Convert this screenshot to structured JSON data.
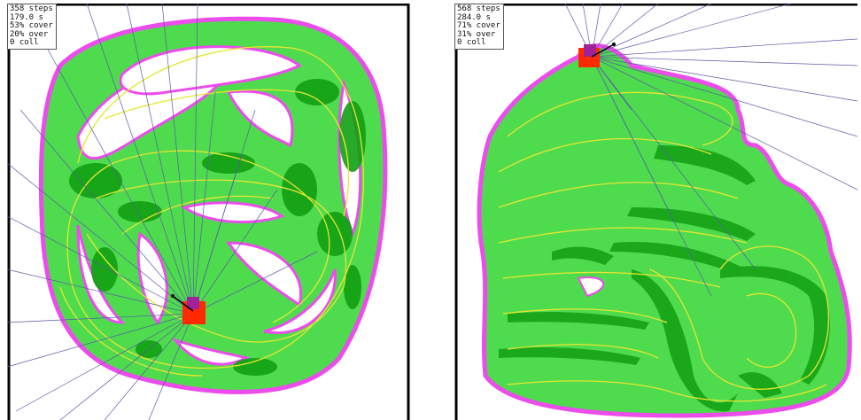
{
  "colors": {
    "coverage": "#4edb4e",
    "overlap": "#12a012",
    "boundary": "#ec4cec",
    "path": "#e6e632",
    "rays": "#5a5aa8",
    "robot": "#ff2a00",
    "robot_core": "#a0229a",
    "frame": "#000000"
  },
  "panels": [
    {
      "id": "left",
      "hud": {
        "steps": "358 steps",
        "time": "179.0 s",
        "cover": "53% cover",
        "over": "20% over",
        "coll": "0 coll"
      }
    },
    {
      "id": "right",
      "hud": {
        "steps": "568 steps",
        "time": "284.0 s",
        "cover": "71% cover",
        "over": "31% over",
        "coll": "0 coll"
      }
    }
  ]
}
